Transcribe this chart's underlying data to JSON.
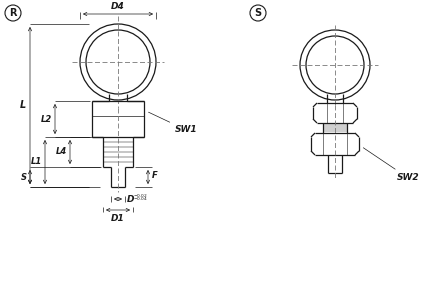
{
  "bg_color": "#ffffff",
  "line_color": "#1a1a1a",
  "dim_color": "#1a1a1a",
  "centerline_color": "#777777",
  "label_R": "R",
  "label_S": "S",
  "dim_labels": {
    "D4": "D4",
    "D1": "D1",
    "D": "D",
    "L": "L",
    "L1": "L1",
    "L2": "L2",
    "L4": "L4",
    "S": "S",
    "F": "F",
    "SW1": "SW1",
    "SW2": "SW2"
  },
  "fig_width": 4.36,
  "fig_height": 3.04,
  "dpi": 100
}
